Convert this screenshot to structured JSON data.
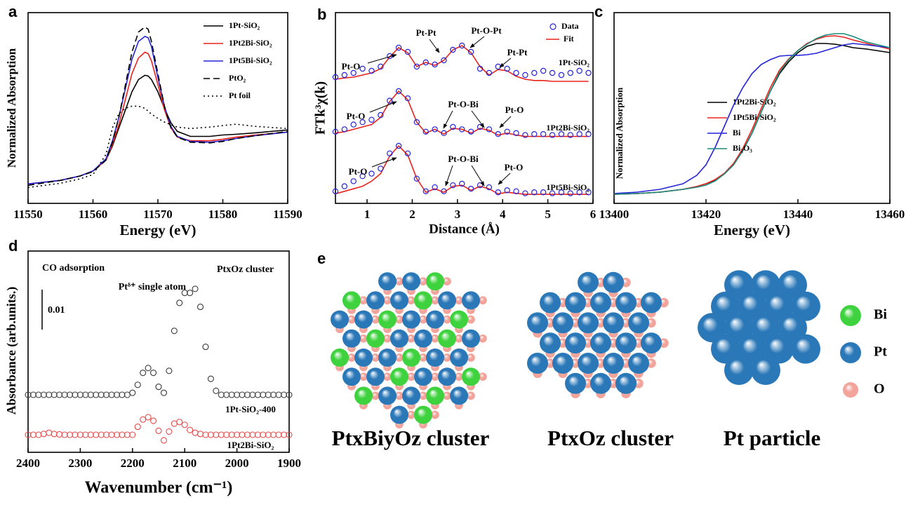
{
  "chart_data": [
    {
      "type": "line",
      "panel_label": "a",
      "xlabel": "Energy (eV)",
      "ylabel": "Normalized Absorption",
      "x": [
        11550,
        11555,
        11558,
        11560,
        11562,
        11563,
        11564,
        11565,
        11566,
        11567,
        11568,
        11568.5,
        11569,
        11570,
        11571,
        11572,
        11573,
        11575,
        11578,
        11580,
        11582,
        11585,
        11590
      ],
      "xlim": [
        11550,
        11590
      ],
      "xticks": [
        11550,
        11560,
        11570,
        11580,
        11590
      ],
      "ylim": [
        0,
        2.65
      ],
      "legend": "upper right",
      "series": [
        {
          "name": "1Pt-SiO₂",
          "color": "#000000",
          "dash": "solid",
          "values": [
            0.27,
            0.32,
            0.38,
            0.45,
            0.6,
            0.8,
            1.05,
            1.3,
            1.55,
            1.72,
            1.78,
            1.77,
            1.72,
            1.55,
            1.32,
            1.12,
            1.0,
            0.93,
            0.93,
            0.95,
            0.96,
            0.98,
            1.02
          ]
        },
        {
          "name": "1Pt2Bi-SiO₂",
          "color": "#e8221c",
          "dash": "solid",
          "values": [
            0.27,
            0.32,
            0.38,
            0.45,
            0.6,
            0.82,
            1.1,
            1.45,
            1.8,
            2.02,
            2.1,
            2.08,
            1.98,
            1.65,
            1.3,
            1.05,
            0.92,
            0.87,
            0.87,
            0.89,
            0.92,
            0.95,
            0.99
          ]
        },
        {
          "name": "1Pt5Bi-SiO₂",
          "color": "#2424d8",
          "dash": "solid",
          "values": [
            0.27,
            0.32,
            0.38,
            0.45,
            0.62,
            0.87,
            1.2,
            1.6,
            2.0,
            2.25,
            2.32,
            2.3,
            2.18,
            1.75,
            1.35,
            1.07,
            0.93,
            0.86,
            0.85,
            0.87,
            0.9,
            0.94,
            0.99
          ]
        },
        {
          "name": "PtO₂",
          "color": "#000000",
          "dash": "dashed",
          "values": [
            0.25,
            0.32,
            0.38,
            0.44,
            0.6,
            0.85,
            1.2,
            1.65,
            2.1,
            2.38,
            2.45,
            2.42,
            2.25,
            1.8,
            1.35,
            1.05,
            0.92,
            0.85,
            0.84,
            0.86,
            0.9,
            0.94,
            1.0
          ]
        },
        {
          "name": "Pt foil",
          "color": "#000000",
          "dash": "dotted",
          "values": [
            0.22,
            0.28,
            0.34,
            0.4,
            0.68,
            1.05,
            1.25,
            1.32,
            1.35,
            1.35,
            1.32,
            1.28,
            1.24,
            1.18,
            1.13,
            1.09,
            1.06,
            1.04,
            1.06,
            1.08,
            1.1,
            1.07,
            1.04
          ]
        }
      ]
    },
    {
      "type": "ft-exafs",
      "panel_label": "b",
      "xlabel": "Distance (Å)",
      "ylabel": "FTk³χ(k)",
      "x": [
        0.3,
        0.5,
        0.7,
        0.9,
        1.1,
        1.3,
        1.5,
        1.7,
        1.9,
        2.1,
        2.3,
        2.5,
        2.7,
        2.9,
        3.1,
        3.3,
        3.5,
        3.7,
        3.9,
        4.1,
        4.3,
        4.5,
        4.7,
        4.9,
        5.1,
        5.3,
        5.5,
        5.7,
        5.9
      ],
      "xlim": [
        0.3,
        6
      ],
      "xticks": [
        1,
        2,
        3,
        4,
        5,
        6
      ],
      "legend_entries": [
        {
          "name": "Data",
          "color": "#2424d8"
        },
        {
          "name": "Fit",
          "color": "#e8221c"
        }
      ],
      "panels": [
        {
          "label": "1Pt-SiO₂",
          "annotations": [
            "Pt-O",
            "Pt-Pt",
            "Pt-O-Pt",
            "Pt-Pt"
          ],
          "data": [
            0.2,
            0.25,
            0.3,
            0.4,
            0.35,
            0.45,
            0.7,
            0.9,
            0.8,
            0.45,
            0.55,
            0.5,
            0.6,
            0.85,
            0.95,
            0.8,
            0.4,
            0.3,
            0.45,
            0.4,
            0.3,
            0.25,
            0.3,
            0.35,
            0.3,
            0.25,
            0.3,
            0.35,
            0.3
          ],
          "fit": [
            0.15,
            0.18,
            0.2,
            0.25,
            0.3,
            0.4,
            0.68,
            0.9,
            0.78,
            0.45,
            0.55,
            0.48,
            0.6,
            0.85,
            0.95,
            0.78,
            0.45,
            0.25,
            0.38,
            0.35,
            0.22,
            0.15,
            0.12,
            0.12,
            0.1,
            0.1,
            0.1,
            0.1,
            0.1
          ]
        },
        {
          "label": "1Pt2Bi-SiO₂",
          "annotations": [
            "Pt-O",
            "Pt-O-Bi",
            "Pt-O"
          ],
          "data": [
            0.15,
            0.2,
            0.3,
            0.35,
            0.4,
            0.5,
            0.8,
            1.0,
            0.85,
            0.35,
            0.15,
            0.2,
            0.12,
            0.25,
            0.2,
            0.15,
            0.25,
            0.2,
            0.1,
            0.15,
            0.12,
            0.08,
            0.1,
            0.1,
            0.08,
            0.1,
            0.08,
            0.1,
            0.1
          ],
          "fit": [
            0.12,
            0.15,
            0.2,
            0.25,
            0.3,
            0.45,
            0.78,
            1.0,
            0.82,
            0.35,
            0.12,
            0.2,
            0.1,
            0.22,
            0.2,
            0.12,
            0.22,
            0.18,
            0.08,
            0.12,
            0.08,
            0.05,
            0.05,
            0.05,
            0.05,
            0.05,
            0.05,
            0.05,
            0.05
          ]
        },
        {
          "label": "1Pt5Bi-SiO₂",
          "annotations": [
            "Pt-O",
            "Pt-O-Bi",
            "Pt-O"
          ],
          "data": [
            0.1,
            0.2,
            0.3,
            0.4,
            0.45,
            0.55,
            0.85,
            1.0,
            0.85,
            0.35,
            0.1,
            0.18,
            0.1,
            0.22,
            0.25,
            0.15,
            0.22,
            0.18,
            0.08,
            0.12,
            0.1,
            0.06,
            0.08,
            0.08,
            0.06,
            0.08,
            0.06,
            0.08,
            0.08
          ],
          "fit": [
            0.05,
            0.1,
            0.15,
            0.2,
            0.3,
            0.45,
            0.8,
            1.0,
            0.82,
            0.35,
            0.08,
            0.15,
            0.08,
            0.2,
            0.22,
            0.12,
            0.2,
            0.15,
            0.05,
            0.08,
            0.06,
            0.04,
            0.04,
            0.04,
            0.04,
            0.04,
            0.04,
            0.04,
            0.04
          ]
        }
      ]
    },
    {
      "type": "line",
      "panel_label": "c",
      "xlabel": "Energy (eV)",
      "ylabel": "Normalized Absorption",
      "x": [
        13400,
        13405,
        13410,
        13415,
        13418,
        13420,
        13422,
        13424,
        13426,
        13428,
        13430,
        13432,
        13434,
        13436,
        13438,
        13440,
        13442,
        13444,
        13446,
        13448,
        13450,
        13452,
        13455,
        13460
      ],
      "xlim": [
        13400,
        13460
      ],
      "xticks": [
        13400,
        13420,
        13440,
        13460
      ],
      "ylim": [
        0,
        2.72
      ],
      "legend": "center right",
      "series": [
        {
          "name": "1Pt2Bi-SiO₂",
          "color": "#000000",
          "values": [
            0.13,
            0.14,
            0.16,
            0.2,
            0.24,
            0.28,
            0.33,
            0.42,
            0.55,
            0.75,
            1.0,
            1.3,
            1.6,
            1.85,
            2.02,
            2.15,
            2.24,
            2.28,
            2.28,
            2.27,
            2.25,
            2.22,
            2.2,
            2.15
          ]
        },
        {
          "name": "1Pt5Bi-SiO₂",
          "color": "#e8221c",
          "values": [
            0.13,
            0.14,
            0.16,
            0.2,
            0.24,
            0.28,
            0.34,
            0.43,
            0.57,
            0.78,
            1.05,
            1.35,
            1.65,
            1.9,
            2.06,
            2.18,
            2.28,
            2.34,
            2.38,
            2.39,
            2.37,
            2.33,
            2.28,
            2.2
          ]
        },
        {
          "name": "Bi",
          "color": "#2424d8",
          "values": [
            0.14,
            0.16,
            0.2,
            0.28,
            0.4,
            0.55,
            0.8,
            1.1,
            1.4,
            1.65,
            1.85,
            1.98,
            2.05,
            2.1,
            2.11,
            2.11,
            2.12,
            2.14,
            2.18,
            2.22,
            2.26,
            2.28,
            2.26,
            2.22
          ]
        },
        {
          "name": "Bi₂O₃",
          "color": "#1a8a7a",
          "values": [
            0.13,
            0.14,
            0.16,
            0.2,
            0.23,
            0.26,
            0.32,
            0.42,
            0.55,
            0.75,
            1.0,
            1.3,
            1.6,
            1.87,
            2.05,
            2.18,
            2.27,
            2.35,
            2.4,
            2.42,
            2.42,
            2.38,
            2.3,
            2.22
          ]
        }
      ]
    },
    {
      "type": "ftir",
      "panel_label": "d",
      "xlabel": "Wavenumber (cm⁻¹)",
      "ylabel": "Absorbance (arb.units.)",
      "annotations": [
        "CO adsorption",
        "Ptᵟ⁺ single atom",
        "PtxOz cluster"
      ],
      "scale_bar": 0.01,
      "x": [
        2400,
        2390,
        2380,
        2370,
        2360,
        2350,
        2340,
        2330,
        2320,
        2310,
        2300,
        2290,
        2280,
        2270,
        2260,
        2250,
        2240,
        2230,
        2220,
        2210,
        2200,
        2190,
        2180,
        2170,
        2160,
        2150,
        2140,
        2130,
        2120,
        2110,
        2100,
        2090,
        2080,
        2070,
        2060,
        2050,
        2040,
        2030,
        2020,
        2010,
        2000,
        1990,
        1980,
        1970,
        1960,
        1950,
        1940,
        1930,
        1920,
        1910,
        1900
      ],
      "xlim": [
        2400,
        1900
      ],
      "xticks": [
        2400,
        2300,
        2200,
        2100,
        2000,
        1900
      ],
      "series": [
        {
          "name": "1Pt-SiO₂-400",
          "color": "#3a3a3a",
          "values": [
            0,
            0,
            0,
            0,
            0,
            0,
            0,
            0,
            0,
            0,
            0,
            0,
            0,
            0,
            0,
            0,
            0,
            0,
            0,
            0,
            0.0005,
            0.0025,
            0.0055,
            0.0067,
            0.0055,
            0.002,
            0.0005,
            0.006,
            0.016,
            0.023,
            0.0255,
            0.0255,
            0.0265,
            0.022,
            0.012,
            0.004,
            0.001,
            0,
            0,
            0,
            0,
            0,
            0,
            0,
            0,
            0,
            0,
            0,
            0,
            0,
            0
          ]
        },
        {
          "name": "1Pt2Bi-SiO₂",
          "color": "#e84a4a",
          "values": [
            0,
            0,
            0,
            0.0002,
            0.0005,
            0.0002,
            0.0001,
            0,
            0,
            0,
            0,
            0,
            0,
            0,
            0,
            0,
            0,
            0,
            0,
            0,
            0,
            0.002,
            0.0038,
            0.0044,
            0.0035,
            0.001,
            -0.0014,
            0.0008,
            0.0028,
            0.0032,
            0.0025,
            0.0012,
            0.0005,
            0.0002,
            0,
            0,
            0,
            0,
            0,
            0,
            0,
            0,
            0,
            0,
            0,
            0,
            0,
            0,
            0,
            0,
            0
          ]
        }
      ]
    }
  ],
  "figure_e": {
    "panel_label": "e",
    "structures": [
      "PtxBiyOz cluster",
      "PtxOz cluster",
      "Pt particle"
    ],
    "legend": [
      {
        "name": "Bi",
        "color": "#3fd23f"
      },
      {
        "name": "Pt",
        "color": "#2b78b8"
      },
      {
        "name": "O",
        "color": "#f2a49b"
      }
    ]
  }
}
